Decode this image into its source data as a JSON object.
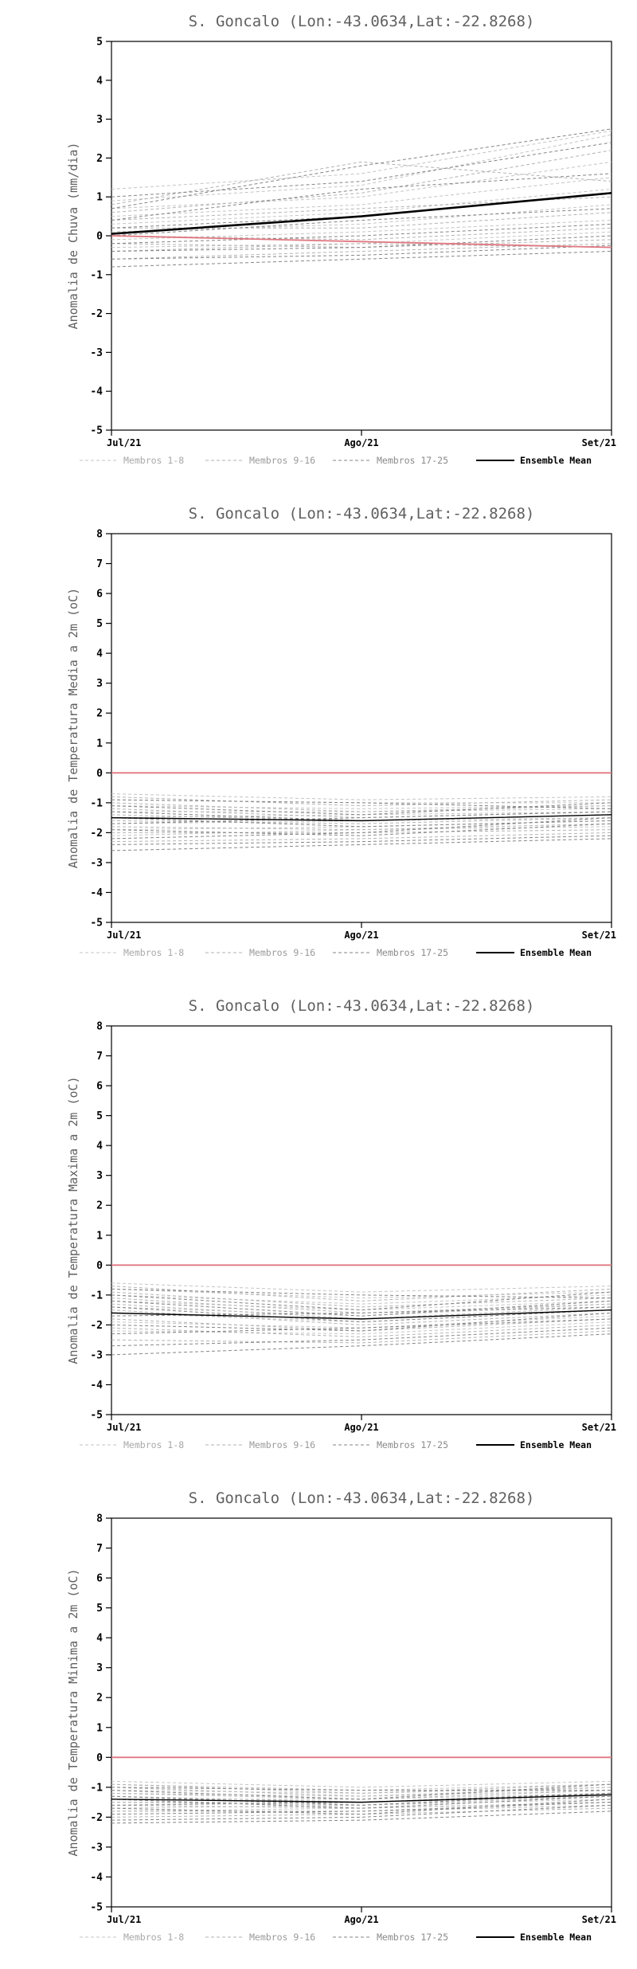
{
  "page": {
    "background": "#ffffff"
  },
  "charts_common": {
    "title": "S. Goncalo (Lon:-43.0634,Lat:-22.8268)",
    "x_ticklabels": [
      "Jul/21",
      "Ago/21",
      "Set/21"
    ],
    "legend": [
      {
        "label": "Membros 1-8",
        "color": "#c4c4c4",
        "text_color": "#a8a8a8",
        "dash": true
      },
      {
        "label": "Membros 9-16",
        "color": "#b2b2b2",
        "text_color": "#9a9a9a",
        "dash": true
      },
      {
        "label": "Membros 17-25",
        "color": "#858585",
        "text_color": "#8a8a8a",
        "dash": true
      },
      {
        "label": "Ensemble Mean",
        "color": "#000000",
        "text_color": "#000000",
        "dash": false
      }
    ],
    "title_color": "#606060",
    "axis_color": "#000000",
    "reference_color": "#e07880"
  },
  "chart_data": [
    {
      "type": "line",
      "title": "S. Goncalo (Lon:-43.0634,Lat:-22.8268)",
      "xlabel": "",
      "ylabel": "Anomalia de Chuva (mm/dia)",
      "ylim": [
        -5,
        5
      ],
      "ytick_step": 1,
      "grid": false,
      "legend_position": "bottom",
      "x": [
        0,
        0.5,
        1
      ],
      "x_ticks": [
        {
          "pos": 0,
          "label": "Jul/21"
        },
        {
          "pos": 0.5,
          "label": "Ago/21"
        },
        {
          "pos": 1,
          "label": "Set/21"
        }
      ],
      "members": {
        "group1": [
          [
            1.2,
            1.6,
            2.7
          ],
          [
            0.9,
            1.3,
            2.6
          ],
          [
            0.7,
            1.0,
            1.9
          ],
          [
            0.5,
            0.8,
            1.5
          ],
          [
            0.3,
            0.6,
            1.2
          ],
          [
            0.1,
            0.3,
            0.8
          ],
          [
            -0.1,
            0.1,
            0.4
          ],
          [
            -0.3,
            -0.2,
            0.1
          ]
        ],
        "group2": [
          [
            0.8,
            1.9,
            1.4
          ],
          [
            0.6,
            1.1,
            2.2
          ],
          [
            0.4,
            0.7,
            1.0
          ],
          [
            0.2,
            0.2,
            0.6
          ],
          [
            0.0,
            -0.1,
            0.2
          ],
          [
            -0.2,
            -0.3,
            -0.1
          ],
          [
            -0.4,
            -0.2,
            -0.3
          ],
          [
            -0.6,
            -0.4,
            -0.2
          ]
        ],
        "group3": [
          [
            1.0,
            1.4,
            2.4
          ],
          [
            0.7,
            1.8,
            2.75
          ],
          [
            0.4,
            1.2,
            1.6
          ],
          [
            0.2,
            0.5,
            1.1
          ],
          [
            0.0,
            0.4,
            0.7
          ],
          [
            -0.2,
            0.0,
            0.3
          ],
          [
            -0.4,
            -0.3,
            0.0
          ],
          [
            -0.6,
            -0.5,
            -0.25
          ],
          [
            -0.8,
            -0.6,
            -0.4
          ]
        ]
      },
      "ensemble_mean": [
        0.05,
        0.5,
        1.1
      ],
      "reference_line": [
        0.0,
        -0.15,
        -0.3
      ]
    },
    {
      "type": "line",
      "title": "S. Goncalo (Lon:-43.0634,Lat:-22.8268)",
      "xlabel": "",
      "ylabel": "Anomalia de Temperatura Media a 2m (oC)",
      "ylim": [
        -5,
        8
      ],
      "ytick_step": 1,
      "grid": false,
      "legend_position": "bottom",
      "x": [
        0,
        0.5,
        1
      ],
      "x_ticks": [
        {
          "pos": 0,
          "label": "Jul/21"
        },
        {
          "pos": 0.5,
          "label": "Ago/21"
        },
        {
          "pos": 1,
          "label": "Set/21"
        }
      ],
      "members": {
        "group1": [
          [
            -0.7,
            -0.9,
            -0.8
          ],
          [
            -0.9,
            -1.0,
            -1.0
          ],
          [
            -1.1,
            -1.2,
            -1.1
          ],
          [
            -1.3,
            -1.3,
            -1.2
          ],
          [
            -1.5,
            -1.4,
            -1.3
          ],
          [
            -1.7,
            -1.6,
            -1.5
          ],
          [
            -1.9,
            -1.8,
            -1.6
          ],
          [
            -2.1,
            -1.9,
            -1.8
          ]
        ],
        "group2": [
          [
            -0.8,
            -1.1,
            -0.9
          ],
          [
            -1.0,
            -1.3,
            -1.1
          ],
          [
            -1.2,
            -1.5,
            -1.3
          ],
          [
            -1.4,
            -1.6,
            -1.4
          ],
          [
            -1.6,
            -1.7,
            -1.5
          ],
          [
            -1.8,
            -1.9,
            -1.7
          ],
          [
            -2.0,
            -2.0,
            -1.9
          ],
          [
            -2.3,
            -2.2,
            -2.0
          ]
        ],
        "group3": [
          [
            -0.9,
            -1.0,
            -1.2
          ],
          [
            -1.1,
            -1.4,
            -1.0
          ],
          [
            -1.3,
            -1.6,
            -1.4
          ],
          [
            -1.5,
            -1.8,
            -1.6
          ],
          [
            -1.7,
            -1.5,
            -1.3
          ],
          [
            -1.9,
            -2.1,
            -1.7
          ],
          [
            -2.2,
            -2.0,
            -1.5
          ],
          [
            -2.4,
            -2.3,
            -2.1
          ],
          [
            -2.6,
            -2.4,
            -2.2
          ]
        ]
      },
      "ensemble_mean": [
        -1.5,
        -1.6,
        -1.4
      ],
      "reference_line": [
        0.0,
        0.0,
        0.0
      ]
    },
    {
      "type": "line",
      "title": "S. Goncalo (Lon:-43.0634,Lat:-22.8268)",
      "xlabel": "",
      "ylabel": "Anomalia de Temperatura Maxima a 2m (oC)",
      "ylim": [
        -5,
        8
      ],
      "ytick_step": 1,
      "grid": false,
      "legend_position": "bottom",
      "x": [
        0,
        0.5,
        1
      ],
      "x_ticks": [
        {
          "pos": 0,
          "label": "Jul/21"
        },
        {
          "pos": 0.5,
          "label": "Ago/21"
        },
        {
          "pos": 1,
          "label": "Set/21"
        }
      ],
      "members": {
        "group1": [
          [
            -0.6,
            -0.9,
            -0.7
          ],
          [
            -0.8,
            -1.1,
            -0.9
          ],
          [
            -1.0,
            -1.3,
            -1.0
          ],
          [
            -1.2,
            -1.5,
            -1.2
          ],
          [
            -1.4,
            -1.7,
            -1.3
          ],
          [
            -1.6,
            -1.9,
            -1.5
          ],
          [
            -1.9,
            -2.1,
            -1.7
          ],
          [
            -2.2,
            -2.3,
            -1.9
          ]
        ],
        "group2": [
          [
            -0.7,
            -1.2,
            -0.8
          ],
          [
            -0.9,
            -1.4,
            -1.1
          ],
          [
            -1.1,
            -1.6,
            -1.3
          ],
          [
            -1.3,
            -1.8,
            -1.4
          ],
          [
            -1.5,
            -2.0,
            -1.6
          ],
          [
            -1.8,
            -2.2,
            -1.8
          ],
          [
            -2.1,
            -2.4,
            -2.0
          ],
          [
            -2.5,
            -2.6,
            -2.2
          ]
        ],
        "group3": [
          [
            -0.8,
            -1.0,
            -1.1
          ],
          [
            -1.0,
            -1.5,
            -0.9
          ],
          [
            -1.2,
            -1.7,
            -1.2
          ],
          [
            -1.4,
            -1.9,
            -1.5
          ],
          [
            -1.7,
            -1.6,
            -1.4
          ],
          [
            -2.0,
            -2.2,
            -1.6
          ],
          [
            -2.3,
            -2.1,
            -1.8
          ],
          [
            -2.7,
            -2.5,
            -2.1
          ],
          [
            -3.0,
            -2.7,
            -2.3
          ]
        ]
      },
      "ensemble_mean": [
        -1.6,
        -1.8,
        -1.5
      ],
      "reference_line": [
        0.0,
        0.0,
        0.0
      ]
    },
    {
      "type": "line",
      "title": "S. Goncalo (Lon:-43.0634,Lat:-22.8268)",
      "xlabel": "",
      "ylabel": "Anomalia de Temperatura Minima a 2m (oC)",
      "ylim": [
        -5,
        8
      ],
      "ytick_step": 1,
      "grid": false,
      "legend_position": "bottom",
      "x": [
        0,
        0.5,
        1
      ],
      "x_ticks": [
        {
          "pos": 0,
          "label": "Jul/21"
        },
        {
          "pos": 0.5,
          "label": "Ago/21"
        },
        {
          "pos": 1,
          "label": "Set/21"
        }
      ],
      "members": {
        "group1": [
          [
            -0.8,
            -1.0,
            -0.8
          ],
          [
            -0.9,
            -1.1,
            -0.9
          ],
          [
            -1.1,
            -1.2,
            -1.0
          ],
          [
            -1.2,
            -1.3,
            -1.1
          ],
          [
            -1.4,
            -1.4,
            -1.2
          ],
          [
            -1.5,
            -1.5,
            -1.3
          ],
          [
            -1.7,
            -1.6,
            -1.4
          ],
          [
            -1.8,
            -1.7,
            -1.5
          ]
        ],
        "group2": [
          [
            -0.9,
            -1.2,
            -0.9
          ],
          [
            -1.0,
            -1.3,
            -1.0
          ],
          [
            -1.2,
            -1.4,
            -1.1
          ],
          [
            -1.3,
            -1.5,
            -1.2
          ],
          [
            -1.5,
            -1.6,
            -1.3
          ],
          [
            -1.6,
            -1.7,
            -1.5
          ],
          [
            -1.8,
            -1.8,
            -1.6
          ],
          [
            -2.0,
            -1.9,
            -1.7
          ]
        ],
        "group3": [
          [
            -1.0,
            -1.1,
            -1.1
          ],
          [
            -1.1,
            -1.4,
            -0.9
          ],
          [
            -1.3,
            -1.6,
            -1.2
          ],
          [
            -1.4,
            -1.7,
            -1.3
          ],
          [
            -1.6,
            -1.5,
            -1.2
          ],
          [
            -1.7,
            -1.9,
            -1.4
          ],
          [
            -1.9,
            -1.8,
            -1.5
          ],
          [
            -2.1,
            -2.0,
            -1.6
          ],
          [
            -2.2,
            -2.1,
            -1.8
          ]
        ]
      },
      "ensemble_mean": [
        -1.4,
        -1.5,
        -1.25
      ],
      "reference_line": [
        0.0,
        0.0,
        0.0
      ]
    }
  ]
}
